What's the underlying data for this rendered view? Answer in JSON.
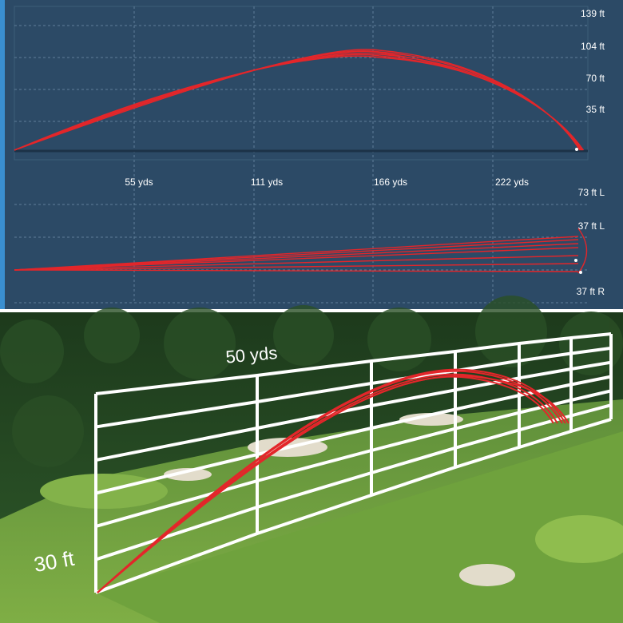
{
  "side_view": {
    "height_labels": [
      "139 ft",
      "104 ft",
      "70 ft",
      "35 ft"
    ],
    "distance_labels": [
      "55 yds",
      "111 yds",
      "166 yds",
      "222 yds"
    ]
  },
  "top_view": {
    "side_labels": [
      "73 ft L",
      "37 ft L",
      "37 ft R"
    ]
  },
  "scene": {
    "distance_label": "50 yds",
    "height_label": "30 ft"
  }
}
